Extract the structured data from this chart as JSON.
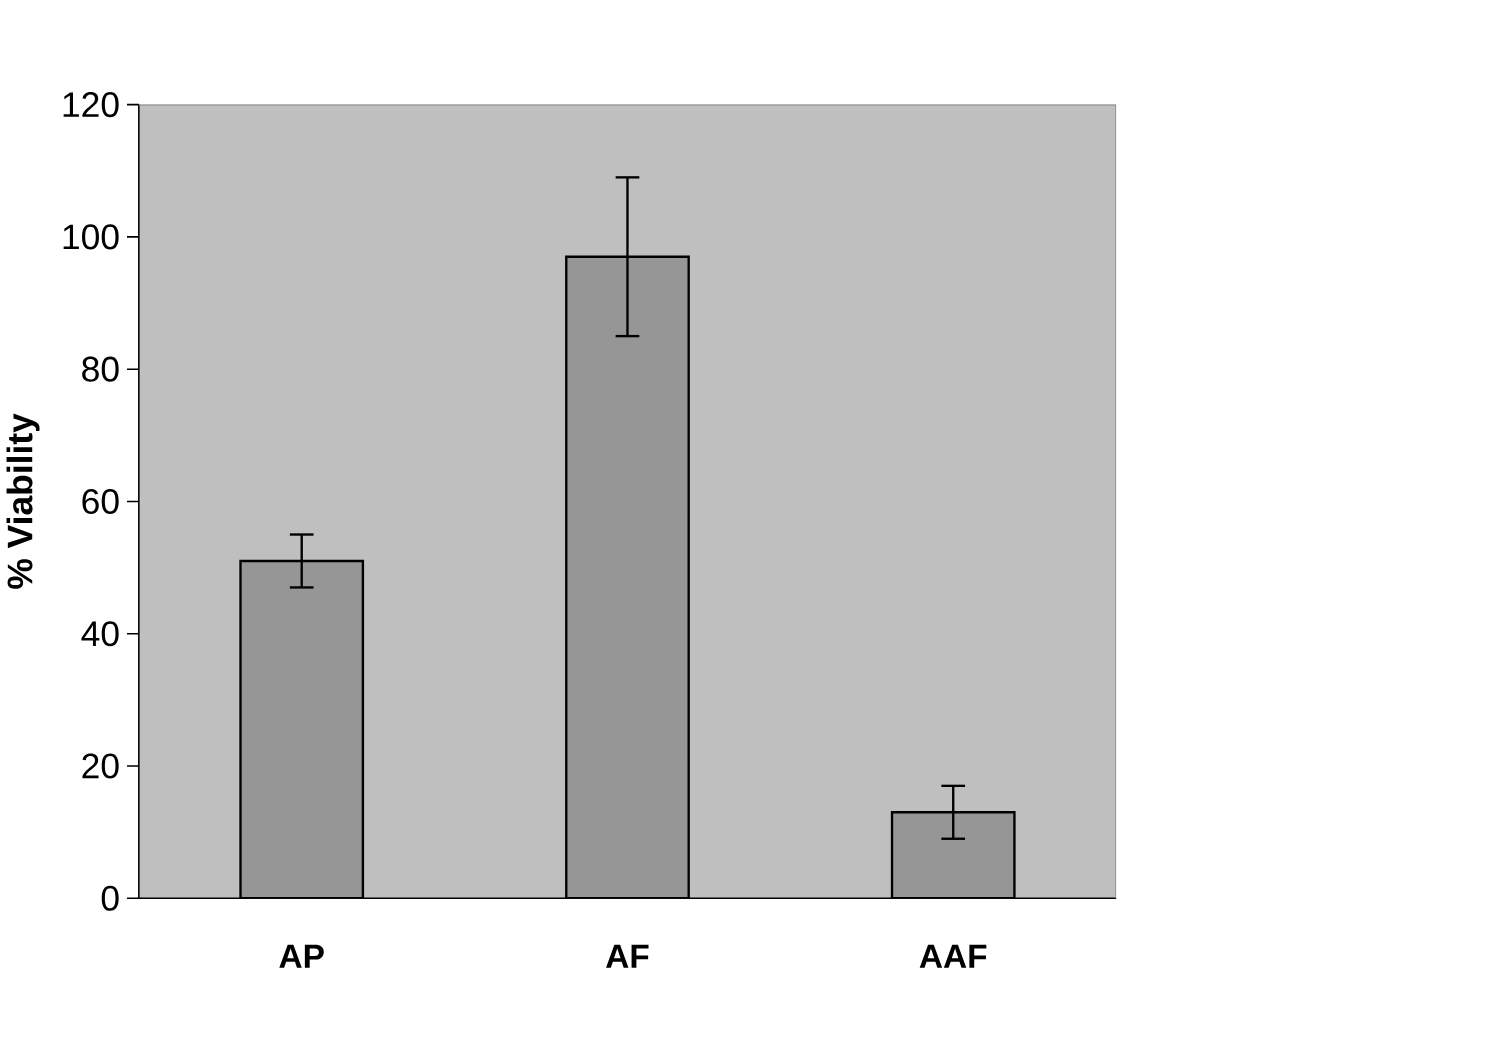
{
  "chart_data": {
    "type": "bar",
    "ylabel": "% Viability",
    "categories": [
      "AP",
      "AF",
      "AAF"
    ],
    "values": [
      51,
      97,
      13
    ],
    "errors": [
      4,
      12,
      4
    ],
    "color": "#969696",
    "ylim": [
      0,
      120
    ],
    "yticks": [
      0,
      20,
      40,
      60,
      80,
      100,
      120
    ],
    "grid": false
  }
}
